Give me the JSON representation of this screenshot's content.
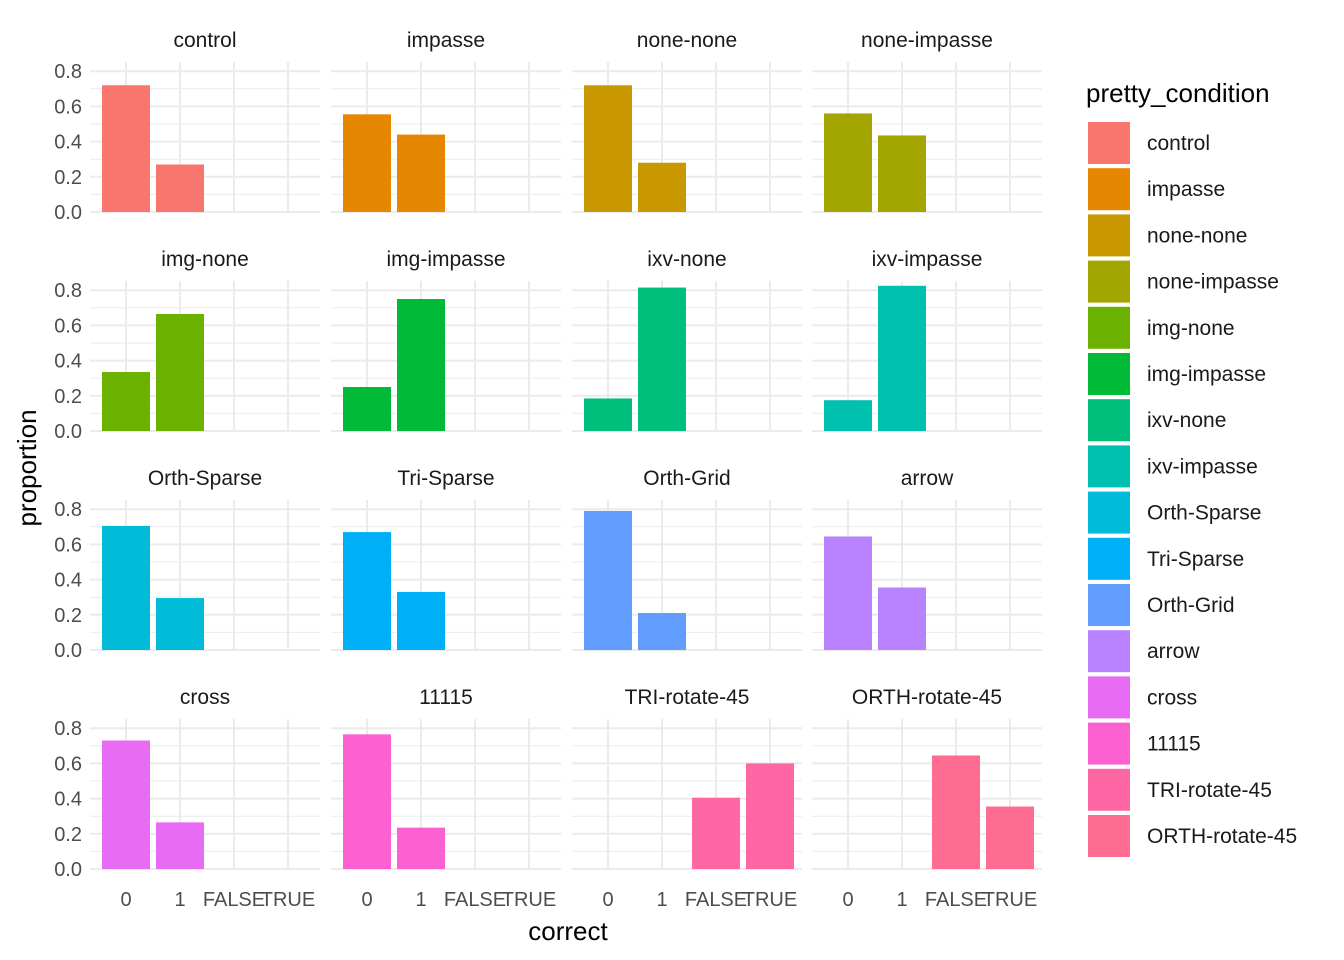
{
  "chart_data": {
    "type": "bar",
    "layout": "faceted",
    "facet_rows": 4,
    "facet_cols": 4,
    "xlabel": "correct",
    "ylabel": "proportion",
    "x_categories": [
      "0",
      "1",
      "FALSE",
      "TRUE"
    ],
    "ylim": [
      0,
      0.85
    ],
    "yticks": [
      0,
      0.2,
      0.4,
      0.6,
      0.8
    ],
    "ytick_labels": [
      "0.0",
      "0.2",
      "0.4",
      "0.6",
      "0.8"
    ],
    "grid": true,
    "legend": {
      "title": "pretty_condition",
      "position": "right"
    },
    "facets": [
      {
        "name": "control",
        "color": "#F8766D",
        "values": [
          0.72,
          0.27,
          null,
          null
        ]
      },
      {
        "name": "impasse",
        "color": "#E58700",
        "values": [
          0.555,
          0.44,
          null,
          null
        ]
      },
      {
        "name": "none-none",
        "color": "#C99800",
        "values": [
          0.72,
          0.28,
          null,
          null
        ]
      },
      {
        "name": "none-impasse",
        "color": "#A3A500",
        "values": [
          0.56,
          0.435,
          null,
          null
        ]
      },
      {
        "name": "img-none",
        "color": "#6BB100",
        "values": [
          0.335,
          0.665,
          null,
          null
        ]
      },
      {
        "name": "img-impasse",
        "color": "#00BA38",
        "values": [
          0.25,
          0.75,
          null,
          null
        ]
      },
      {
        "name": "ixv-none",
        "color": "#00BF7D",
        "values": [
          0.185,
          0.815,
          null,
          null
        ]
      },
      {
        "name": "ixv-impasse",
        "color": "#00C0AF",
        "values": [
          0.175,
          0.825,
          null,
          null
        ]
      },
      {
        "name": "Orth-Sparse",
        "color": "#00BCD8",
        "values": [
          0.705,
          0.295,
          null,
          null
        ]
      },
      {
        "name": "Tri-Sparse",
        "color": "#00B0F6",
        "values": [
          0.67,
          0.33,
          null,
          null
        ]
      },
      {
        "name": "Orth-Grid",
        "color": "#619CFF",
        "values": [
          0.79,
          0.21,
          null,
          null
        ]
      },
      {
        "name": "arrow",
        "color": "#B983FF",
        "values": [
          0.645,
          0.355,
          null,
          null
        ]
      },
      {
        "name": "cross",
        "color": "#E76BF3",
        "values": [
          0.73,
          0.265,
          null,
          null
        ]
      },
      {
        "name": "11115",
        "color": "#FD61D1",
        "values": [
          0.765,
          0.235,
          null,
          null
        ]
      },
      {
        "name": "TRI-rotate-45",
        "color": "#FF67A4",
        "values": [
          null,
          null,
          0.405,
          0.6
        ]
      },
      {
        "name": "ORTH-rotate-45",
        "color": "#FF6C91",
        "values": [
          null,
          null,
          0.645,
          0.355
        ]
      }
    ]
  }
}
